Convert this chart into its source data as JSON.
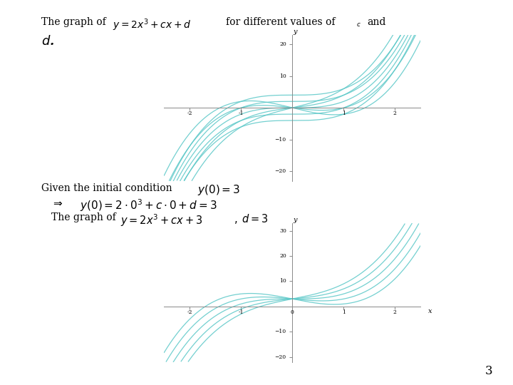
{
  "background_color": "#ffffff",
  "curve_color": "#5BC8C8",
  "axis_color": "#888888",
  "graph1": {
    "xlim": [
      -2.5,
      2.5
    ],
    "ylim": [
      -23,
      23
    ],
    "c_values": [
      -4,
      -2,
      0,
      2,
      4
    ],
    "d_values": [
      -4,
      -2,
      0,
      2,
      4
    ],
    "xticks": [
      -2,
      -1,
      1,
      2
    ],
    "yticks": [
      -20,
      -10,
      10,
      20
    ],
    "ylabel": "y"
  },
  "graph2": {
    "xlim": [
      -2.5,
      2.5
    ],
    "ylim": [
      -22,
      33
    ],
    "c_values": [
      -4,
      -2,
      0,
      2,
      4
    ],
    "d": 3,
    "xticks": [
      -2,
      -1,
      0,
      1,
      2
    ],
    "yticks": [
      -20,
      -10,
      10,
      20,
      30
    ],
    "xlabel": "x",
    "ylabel": "y"
  },
  "page_number": "3",
  "texts": {
    "line1": "The graph of",
    "formula1": "$y = 2x^3 + cx + d$",
    "line1b": "for different values of",
    "sub_c": "$_c$",
    "line1c": "and",
    "italic_d": "$d$.",
    "given": "Given the initial condition",
    "y0_eq_3": "$y(0) = 3$",
    "implication": "$\\Rightarrow$",
    "y0_expand": "$y(0) = 2 \\cdot 0^3 + c \\cdot 0 + d = 3$",
    "graph2_label1": "The graph of",
    "formula2": "$y = 2x^3 + cx + 3$",
    "d_eq_3": "$d = 3$"
  }
}
